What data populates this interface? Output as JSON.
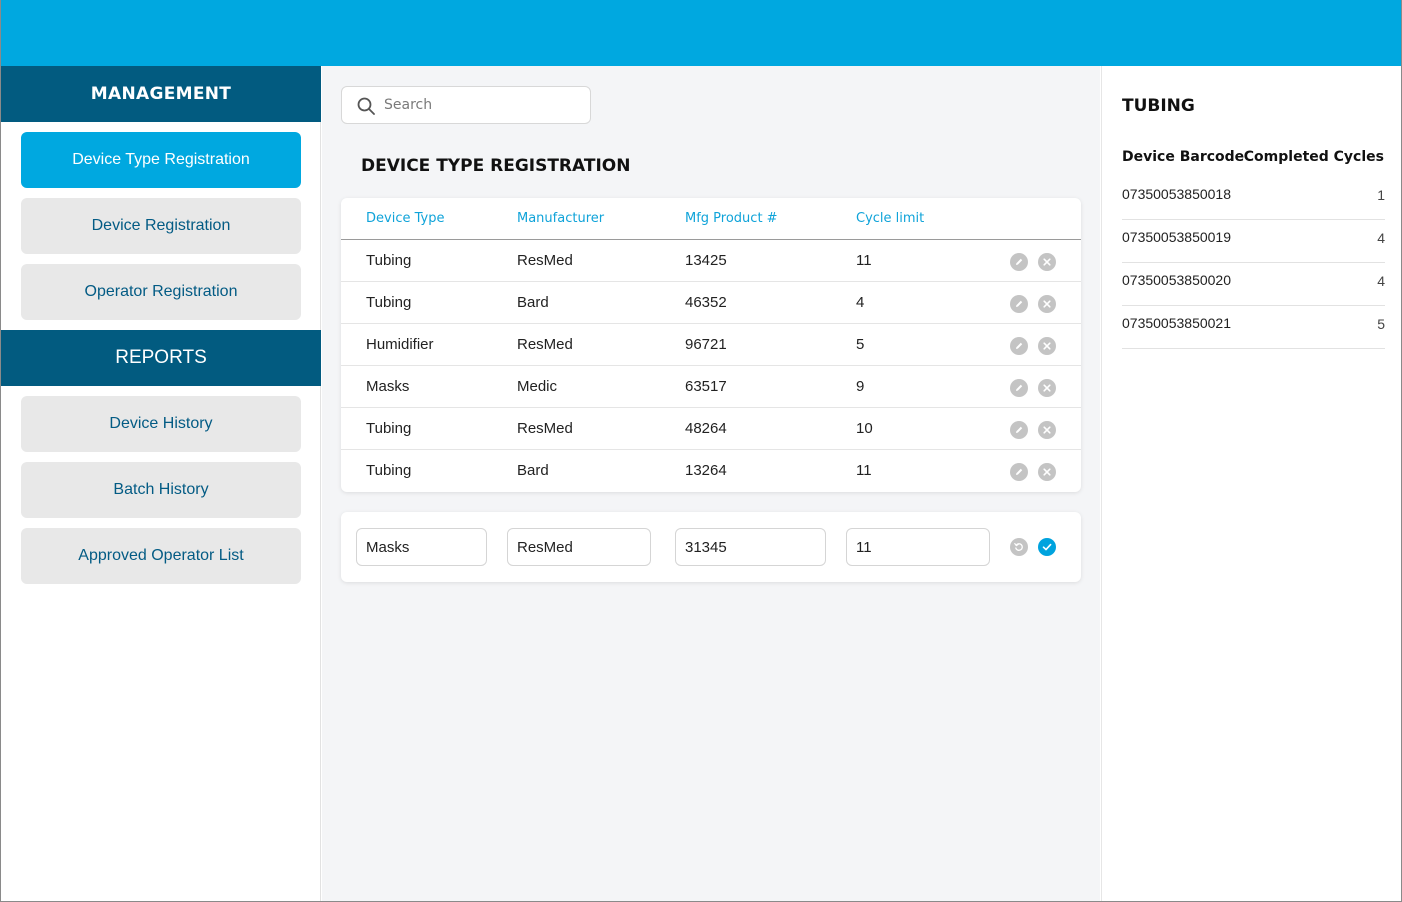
{
  "sidebar": {
    "management_header": "MANAGEMENT",
    "management_items": [
      {
        "label": "Device Type Registration",
        "active": true
      },
      {
        "label": "Device Registration",
        "active": false
      },
      {
        "label": "Operator Registration",
        "active": false
      }
    ],
    "reports_header": "REPORTS",
    "report_items": [
      {
        "label": "Device History"
      },
      {
        "label": "Batch History"
      },
      {
        "label": "Approved Operator List"
      }
    ]
  },
  "main": {
    "search": {
      "placeholder": "Search"
    },
    "title": "DEVICE TYPE REGISTRATION",
    "table": {
      "columns": [
        "Device Type",
        "Manufacturer",
        "Mfg Product #",
        "Cycle limit"
      ],
      "rows": [
        [
          "Tubing",
          "ResMed",
          "13425",
          "11"
        ],
        [
          "Tubing",
          "Bard",
          "46352",
          "4"
        ],
        [
          "Humidifier",
          "ResMed",
          "96721",
          "5"
        ],
        [
          "Masks",
          "Medic",
          "63517",
          "9"
        ],
        [
          "Tubing",
          "ResMed",
          "48264",
          "10"
        ],
        [
          "Tubing",
          "Bard",
          "13264",
          "11"
        ]
      ]
    },
    "form": {
      "device_type": "Masks",
      "manufacturer": "ResMed",
      "product_number": "31345",
      "cycle_limit": "11"
    }
  },
  "right_panel": {
    "title": "TUBING",
    "columns": [
      "Device Barcode",
      "Completed Cycles"
    ],
    "rows": [
      {
        "barcode": "07350053850018",
        "cycles": "1"
      },
      {
        "barcode": "07350053850019",
        "cycles": "4"
      },
      {
        "barcode": "07350053850020",
        "cycles": "4"
      },
      {
        "barcode": "07350053850021",
        "cycles": "5"
      }
    ]
  },
  "colors": {
    "topbar": "#00a8e0",
    "section_header": "#025b80",
    "active_nav": "#00a8e0",
    "column_header_text": "#0fa3d9"
  }
}
